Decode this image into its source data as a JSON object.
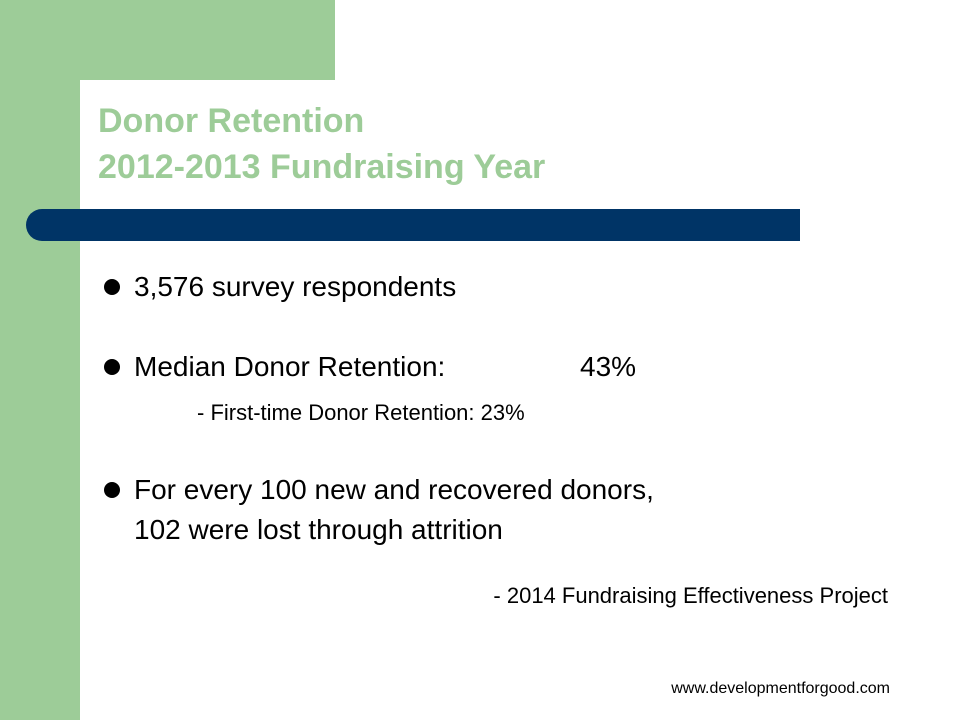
{
  "slide": {
    "title_line1": "Donor Retention",
    "title_line2": "2012-2013 Fundraising Year",
    "bullets": [
      {
        "text": "3,576 survey respondents"
      },
      {
        "text": "Median Donor Retention:",
        "value": "43%"
      },
      {
        "text_line1": "For every 100 new and recovered donors,",
        "text_line2": "102 were lost through attrition"
      }
    ],
    "sub_item": "- First-time Donor Retention:  23%",
    "credit": "- 2014 Fundraising Effectiveness Project",
    "footer_url": "www.developmentforgood.com"
  },
  "colors": {
    "accent_green": "#9dcc98",
    "bar_navy": "#003466",
    "text": "#000000"
  }
}
